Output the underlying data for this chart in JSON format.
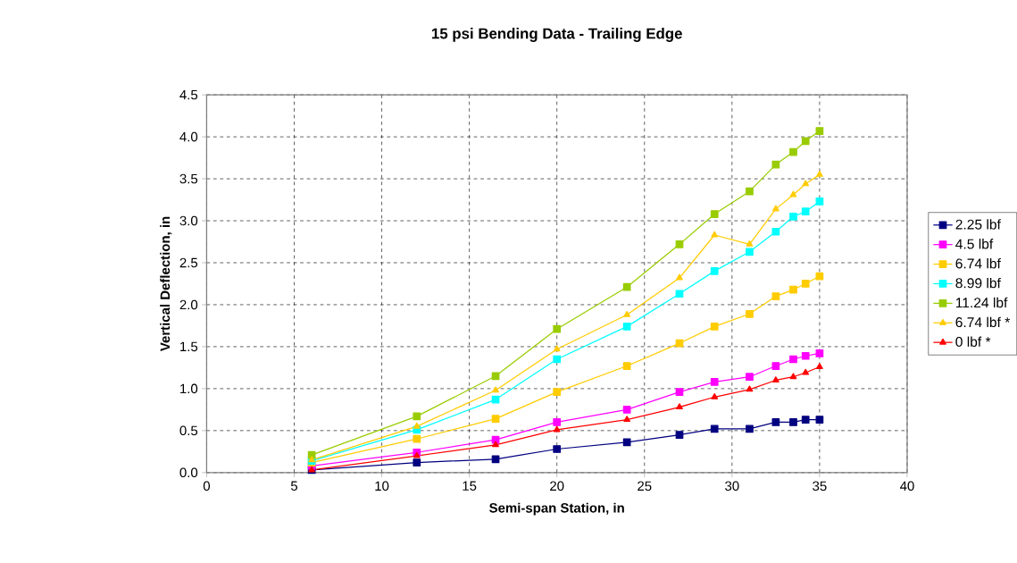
{
  "chart_data": {
    "type": "line",
    "title": "15 psi Bending Data - Trailing Edge",
    "xlabel": "Semi-span Station, in",
    "ylabel": "Vertical Deflection, in",
    "x": [
      6,
      12,
      16.5,
      20,
      24,
      27,
      29,
      31,
      32.5,
      33.5,
      34.2,
      35
    ],
    "series": [
      {
        "name": "2.25 lbf",
        "color": "#000080",
        "marker": "square",
        "values": [
          0.03,
          0.12,
          0.16,
          0.28,
          0.36,
          0.45,
          0.52,
          0.52,
          0.6,
          0.6,
          0.63,
          0.63
        ]
      },
      {
        "name": "4.5 lbf",
        "color": "#ff00ff",
        "marker": "square",
        "values": [
          0.08,
          0.24,
          0.39,
          0.6,
          0.75,
          0.96,
          1.08,
          1.14,
          1.27,
          1.35,
          1.39,
          1.42
        ]
      },
      {
        "name": "6.74 lbf",
        "color": "#ffcc00",
        "marker": "square",
        "values": [
          0.12,
          0.4,
          0.64,
          0.96,
          1.27,
          1.54,
          1.74,
          1.89,
          2.1,
          2.18,
          2.25,
          2.34
        ]
      },
      {
        "name": "8.99 lbf",
        "color": "#00ffff",
        "marker": "square",
        "values": [
          0.14,
          0.51,
          0.87,
          1.35,
          1.74,
          2.13,
          2.4,
          2.63,
          2.87,
          3.05,
          3.11,
          3.23
        ]
      },
      {
        "name": "11.24 lbf",
        "color": "#99cc00",
        "marker": "square",
        "values": [
          0.21,
          0.67,
          1.15,
          1.71,
          2.21,
          2.72,
          3.08,
          3.35,
          3.67,
          3.82,
          3.95,
          4.07
        ]
      },
      {
        "name": "6.74 lbf *",
        "color": "#ffcc00",
        "marker": "triangle",
        "values": [
          0.15,
          0.55,
          0.98,
          1.47,
          1.88,
          2.32,
          2.83,
          2.72,
          3.14,
          3.31,
          3.44,
          3.55
        ]
      },
      {
        "name": "0 lbf *",
        "color": "#ff0000",
        "marker": "triangle",
        "values": [
          0.03,
          0.2,
          0.33,
          0.51,
          0.63,
          0.78,
          0.9,
          0.99,
          1.1,
          1.14,
          1.19,
          1.26
        ]
      }
    ],
    "xlim": [
      0,
      40
    ],
    "xticks": [
      0,
      5,
      10,
      15,
      20,
      25,
      30,
      35,
      40
    ],
    "ylim": [
      0,
      4.5
    ],
    "yticks": [
      {
        "value": 0,
        "label": "0.0"
      },
      {
        "value": 0.5,
        "label": "0.5"
      },
      {
        "value": 1,
        "label": "1.0"
      },
      {
        "value": 1.5,
        "label": "1.5"
      },
      {
        "value": 2,
        "label": "2.0"
      },
      {
        "value": 2.5,
        "label": "2.5"
      },
      {
        "value": 3,
        "label": "3.0"
      },
      {
        "value": 3.5,
        "label": "3.5"
      },
      {
        "value": 4,
        "label": "4.0"
      },
      {
        "value": 4.5,
        "label": "4.5"
      }
    ],
    "grid": true,
    "legend": "right",
    "line_style": "solid"
  }
}
